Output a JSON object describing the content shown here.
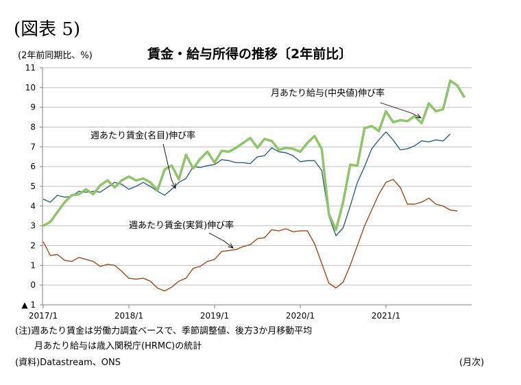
{
  "figure_label": "(図表 5)",
  "unit_label": "(2年前同期比、%)",
  "notes": [
    "(注)週あたり賃金は労働力調査ベースで、季節調整値、後方3か月移動平均",
    "月あたり給与は歳入関税庁(HRMC)の統計"
  ],
  "source": "(資料)Datastream、ONS",
  "x_unit": "(月次)",
  "colors": {
    "real_wage": "#9a4a1e",
    "nominal_wage": "#2e5f7d",
    "median_pay": "#8fc46a",
    "axis": "#808080",
    "grid": "#bfbfbf"
  },
  "chart_data": {
    "type": "line",
    "title": "賃金・給与所得の推移〔2年前比〕",
    "xlabel": "",
    "ylabel": "",
    "ylim": [
      -1,
      11
    ],
    "y_ticks": [
      -1,
      0,
      1,
      2,
      3,
      4,
      5,
      6,
      7,
      8,
      9,
      10,
      11
    ],
    "y_tick_labels": [
      "▲ 1",
      "0",
      "1",
      "2",
      "3",
      "4",
      "5",
      "6",
      "7",
      "8",
      "9",
      "10",
      "11"
    ],
    "x_tick_labels": [
      "2017/1",
      "2018/1",
      "2019/1",
      "2020/1",
      "2021/1"
    ],
    "x_tick_dates": [
      "2017-01",
      "2018-01",
      "2019-01",
      "2020-01",
      "2021-01"
    ],
    "x_range": [
      "2017-01",
      "2021-12"
    ],
    "grid": true,
    "annotations": [
      "月あたり給与(中央値)伸び率",
      "週あたり賃金(名目)伸び率",
      "週あたり賃金(実質)伸び率"
    ],
    "series": [
      {
        "name": "週あたり賃金(実質)伸び率",
        "color": "#9a4a1e",
        "start": "2017-01",
        "values": [
          2.2,
          1.5,
          1.55,
          1.25,
          1.2,
          1.4,
          1.3,
          1.2,
          0.95,
          1.05,
          1.0,
          0.7,
          0.35,
          0.3,
          0.35,
          0.2,
          -0.15,
          -0.3,
          -0.1,
          0.2,
          0.35,
          0.85,
          0.95,
          1.2,
          1.3,
          1.7,
          1.75,
          1.8,
          1.95,
          2.05,
          2.35,
          2.4,
          2.8,
          2.75,
          2.85,
          2.7,
          2.75,
          2.75,
          2.1,
          1.1,
          0.1,
          -0.15,
          0.15,
          1.0,
          2.0,
          3.0,
          3.8,
          4.6,
          5.2,
          5.35,
          4.95,
          4.1,
          4.1,
          4.2,
          4.4,
          4.1,
          4.0,
          3.8,
          3.75
        ]
      },
      {
        "name": "週あたり賃金(名目)伸び率",
        "color": "#2e5f7d",
        "start": "2017-01",
        "values": [
          4.35,
          4.2,
          4.55,
          4.45,
          4.5,
          4.75,
          4.7,
          4.75,
          4.7,
          4.95,
          5.2,
          5.1,
          4.85,
          5.0,
          5.2,
          5.0,
          4.75,
          4.55,
          4.85,
          5.2,
          5.4,
          6.0,
          5.95,
          6.05,
          6.1,
          6.35,
          6.3,
          6.2,
          6.2,
          6.15,
          6.5,
          6.55,
          6.95,
          6.75,
          6.7,
          6.55,
          6.25,
          6.3,
          6.3,
          5.8,
          3.5,
          2.5,
          2.9,
          4.0,
          5.2,
          6.0,
          6.9,
          7.35,
          7.75,
          7.35,
          6.85,
          6.9,
          7.05,
          7.3,
          7.25,
          7.35,
          7.3,
          7.65
        ]
      },
      {
        "name": "月あたり給与(中央値)伸び率",
        "color": "#8fc46a",
        "start": "2017-01",
        "values": [
          3.0,
          3.2,
          3.7,
          4.2,
          4.55,
          4.6,
          4.85,
          4.6,
          5.05,
          5.3,
          4.95,
          5.3,
          5.5,
          5.3,
          5.4,
          5.2,
          4.8,
          5.85,
          6.05,
          5.35,
          6.6,
          5.9,
          6.4,
          6.75,
          6.2,
          6.8,
          6.75,
          6.95,
          7.2,
          7.45,
          6.95,
          7.4,
          7.3,
          6.85,
          6.95,
          6.9,
          6.75,
          7.2,
          7.55,
          6.9,
          3.6,
          2.8,
          4.2,
          6.1,
          6.05,
          7.95,
          8.05,
          7.8,
          8.8,
          8.25,
          8.35,
          8.3,
          8.55,
          8.2,
          9.2,
          8.8,
          8.9,
          10.35,
          10.1,
          9.5
        ]
      }
    ]
  }
}
